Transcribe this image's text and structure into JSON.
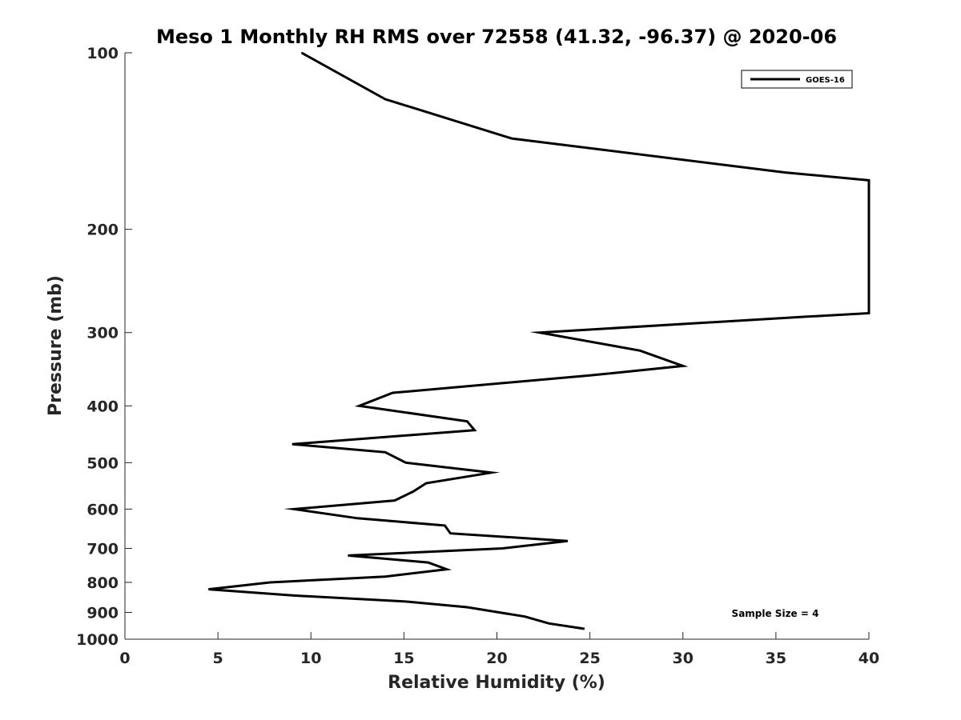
{
  "chart_data": {
    "type": "line",
    "title": "Meso 1 Monthly RH RMS over 72558 (41.32, -96.37) @ 2020-06",
    "xlabel": "Relative Humidity (%)",
    "ylabel": "Pressure (mb)",
    "xlim": [
      0,
      40
    ],
    "ylim": [
      100,
      1000
    ],
    "yscale": "log",
    "yreversed": true,
    "x_ticks": [
      "0",
      "5",
      "10",
      "15",
      "20",
      "25",
      "30",
      "35",
      "40"
    ],
    "y_ticks": [
      "100",
      "200",
      "300",
      "400",
      "500",
      "600",
      "700",
      "800",
      "900",
      "1000"
    ],
    "grid": false,
    "legend_position": "top-right",
    "series": [
      {
        "name": "GOES-16",
        "color": "#000000",
        "points": [
          {
            "rh": 9.5,
            "p": 100
          },
          {
            "rh": 14.0,
            "p": 120
          },
          {
            "rh": 20.8,
            "p": 140
          },
          {
            "rh": 35.5,
            "p": 160
          },
          {
            "rh": 40.0,
            "p": 165
          },
          {
            "rh": 40.0,
            "p": 278
          },
          {
            "rh": 36.5,
            "p": 282
          },
          {
            "rh": 22.3,
            "p": 300
          },
          {
            "rh": 27.7,
            "p": 322
          },
          {
            "rh": 30.0,
            "p": 342
          },
          {
            "rh": 25.0,
            "p": 355
          },
          {
            "rh": 14.4,
            "p": 380
          },
          {
            "rh": 12.6,
            "p": 400
          },
          {
            "rh": 18.4,
            "p": 425
          },
          {
            "rh": 18.8,
            "p": 440
          },
          {
            "rh": 9.0,
            "p": 465
          },
          {
            "rh": 14.0,
            "p": 480
          },
          {
            "rh": 15.1,
            "p": 500
          },
          {
            "rh": 19.7,
            "p": 520
          },
          {
            "rh": 16.2,
            "p": 542
          },
          {
            "rh": 15.5,
            "p": 560
          },
          {
            "rh": 14.5,
            "p": 580
          },
          {
            "rh": 9.1,
            "p": 600
          },
          {
            "rh": 12.5,
            "p": 622
          },
          {
            "rh": 17.2,
            "p": 640
          },
          {
            "rh": 17.5,
            "p": 660
          },
          {
            "rh": 23.8,
            "p": 680
          },
          {
            "rh": 20.3,
            "p": 700
          },
          {
            "rh": 12.0,
            "p": 720
          },
          {
            "rh": 16.3,
            "p": 740
          },
          {
            "rh": 17.3,
            "p": 760
          },
          {
            "rh": 14.0,
            "p": 782
          },
          {
            "rh": 7.8,
            "p": 800
          },
          {
            "rh": 4.5,
            "p": 822
          },
          {
            "rh": 9.0,
            "p": 842
          },
          {
            "rh": 15.0,
            "p": 862
          },
          {
            "rh": 18.4,
            "p": 882
          },
          {
            "rh": 21.5,
            "p": 915
          },
          {
            "rh": 22.8,
            "p": 940
          },
          {
            "rh": 24.7,
            "p": 960
          }
        ]
      }
    ],
    "annotations": [
      "Sample Size = 4"
    ]
  }
}
